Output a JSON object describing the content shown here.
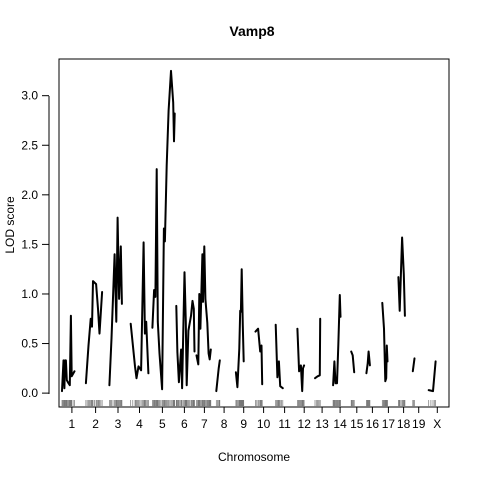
{
  "chart_data": {
    "type": "line",
    "title": "Vamp8",
    "xlabel": "Chromosome",
    "ylabel": "LOD score",
    "ylim": [
      -0.14,
      3.37
    ],
    "yticks": [
      0.0,
      0.5,
      1.0,
      1.5,
      2.0,
      2.5,
      3.0
    ],
    "ytick_labels": [
      "0.0",
      "0.5",
      "1.0",
      "1.5",
      "2.0",
      "2.5",
      "3.0"
    ],
    "grid": false,
    "chromosomes": [
      {
        "label": "1",
        "length": 92,
        "points": [
          [
            0,
            0.02
          ],
          [
            7,
            0.33
          ],
          [
            11,
            0.05
          ],
          [
            14,
            0.33
          ],
          [
            18,
            0.33
          ],
          [
            22,
            0.13
          ],
          [
            30,
            0.1
          ],
          [
            36,
            0.08
          ],
          [
            41,
            0.78
          ],
          [
            45,
            0.17
          ],
          [
            58,
            0.22
          ]
        ]
      },
      {
        "label": "2",
        "length": 90,
        "points": [
          [
            0,
            0.1
          ],
          [
            12,
            0.48
          ],
          [
            22,
            0.75
          ],
          [
            28,
            0.67
          ],
          [
            33,
            1.13
          ],
          [
            47,
            1.1
          ],
          [
            56,
            0.85
          ],
          [
            63,
            0.6
          ],
          [
            75,
            1.02
          ]
        ]
      },
      {
        "label": "3",
        "length": 80,
        "points": [
          [
            0,
            0.08
          ],
          [
            10,
            0.55
          ],
          [
            24,
            1.4
          ],
          [
            32,
            0.72
          ],
          [
            38,
            1.77
          ],
          [
            45,
            0.95
          ],
          [
            53,
            1.48
          ],
          [
            58,
            0.9
          ]
        ]
      },
      {
        "label": "4",
        "length": 82,
        "points": [
          [
            0,
            0.7
          ],
          [
            20,
            0.27
          ],
          [
            27,
            0.15
          ],
          [
            36,
            0.27
          ],
          [
            48,
            0.23
          ],
          [
            60,
            1.52
          ],
          [
            66,
            0.6
          ],
          [
            72,
            0.72
          ],
          [
            82,
            0.2
          ]
        ]
      },
      {
        "label": "5",
        "length": 92,
        "points": [
          [
            0,
            0.66
          ],
          [
            8,
            1.04
          ],
          [
            14,
            0.97
          ],
          [
            20,
            2.26
          ],
          [
            25,
            0.72
          ],
          [
            33,
            0.4
          ],
          [
            45,
            0.04
          ],
          [
            53,
            1.66
          ],
          [
            58,
            1.53
          ],
          [
            66,
            2.3
          ],
          [
            75,
            2.85
          ],
          [
            86,
            3.25
          ],
          [
            96,
            2.93
          ],
          [
            100,
            2.54
          ],
          [
            103,
            2.82
          ]
        ]
      },
      {
        "label": "6",
        "length": 75,
        "points": [
          [
            0,
            0.88
          ],
          [
            5,
            0.41
          ],
          [
            12,
            0.11
          ],
          [
            22,
            0.44
          ],
          [
            27,
            0.05
          ],
          [
            38,
            1.22
          ],
          [
            44,
            0.72
          ],
          [
            48,
            0.08
          ],
          [
            56,
            0.63
          ],
          [
            68,
            0.78
          ],
          [
            75,
            0.93
          ],
          [
            81,
            0.85
          ],
          [
            84,
            0.42
          ]
        ]
      },
      {
        "label": "7",
        "length": 73,
        "points": [
          [
            0,
            0.38
          ],
          [
            8,
            0.29
          ],
          [
            13,
            1.0
          ],
          [
            18,
            0.65
          ],
          [
            27,
            1.4
          ],
          [
            30,
            0.92
          ],
          [
            36,
            1.48
          ],
          [
            41,
            0.95
          ],
          [
            50,
            0.71
          ],
          [
            56,
            0.4
          ],
          [
            61,
            0.34
          ],
          [
            66,
            0.44
          ]
        ]
      },
      {
        "label": "8",
        "length": 72,
        "points": [
          [
            0,
            0.02
          ],
          [
            11,
            0.25
          ],
          [
            16,
            0.33
          ]
        ]
      },
      {
        "label": "9",
        "length": 72,
        "points": [
          [
            0,
            0.21
          ],
          [
            7,
            0.06
          ],
          [
            16,
            0.45
          ],
          [
            20,
            0.83
          ],
          [
            23,
            0.82
          ],
          [
            27,
            1.25
          ],
          [
            32,
            0.68
          ],
          [
            36,
            0.32
          ]
        ]
      },
      {
        "label": "10",
        "length": 75,
        "points": [
          [
            0,
            0.62
          ],
          [
            12,
            0.65
          ],
          [
            22,
            0.42
          ],
          [
            28,
            0.48
          ],
          [
            31,
            0.09
          ]
        ]
      },
      {
        "label": "11",
        "length": 82,
        "points": [
          [
            0,
            0.69
          ],
          [
            8,
            0.16
          ],
          [
            15,
            0.32
          ],
          [
            21,
            0.07
          ],
          [
            33,
            0.05
          ]
        ]
      },
      {
        "label": "12",
        "length": 63,
        "points": [
          [
            0,
            0.65
          ],
          [
            8,
            0.22
          ],
          [
            16,
            0.28
          ],
          [
            22,
            0.02
          ],
          [
            26,
            0.25
          ],
          [
            31,
            0.28
          ]
        ]
      },
      {
        "label": "13",
        "length": 65,
        "points": [
          [
            0,
            0.15
          ],
          [
            12,
            0.17
          ],
          [
            22,
            0.18
          ],
          [
            24,
            0.75
          ]
        ]
      },
      {
        "label": "14",
        "length": 65,
        "points": [
          [
            0,
            0.08
          ],
          [
            6,
            0.32
          ],
          [
            11,
            0.1
          ],
          [
            18,
            0.1
          ],
          [
            24,
            0.48
          ],
          [
            31,
            0.99
          ],
          [
            34,
            0.77
          ]
        ]
      },
      {
        "label": "15",
        "length": 52,
        "points": [
          [
            0,
            0.42
          ],
          [
            7,
            0.38
          ],
          [
            14,
            0.21
          ]
        ]
      },
      {
        "label": "16",
        "length": 55,
        "points": [
          [
            0,
            0.2
          ],
          [
            6,
            0.3
          ],
          [
            10,
            0.42
          ],
          [
            16,
            0.28
          ]
        ]
      },
      {
        "label": "17",
        "length": 56,
        "points": [
          [
            0,
            0.91
          ],
          [
            8,
            0.65
          ],
          [
            14,
            0.12
          ],
          [
            18,
            0.15
          ],
          [
            21,
            0.48
          ],
          [
            24,
            0.32
          ]
        ]
      },
      {
        "label": "18",
        "length": 48,
        "points": [
          [
            0,
            1.17
          ],
          [
            6,
            0.83
          ],
          [
            17,
            1.57
          ],
          [
            25,
            1.2
          ],
          [
            30,
            0.78
          ]
        ]
      },
      {
        "label": "19",
        "length": 55,
        "points": [
          [
            0,
            0.22
          ],
          [
            8,
            0.35
          ]
        ]
      },
      {
        "label": "X",
        "length": 80,
        "points": [
          [
            0,
            0.03
          ],
          [
            20,
            0.02
          ],
          [
            32,
            0.32
          ]
        ]
      }
    ]
  }
}
